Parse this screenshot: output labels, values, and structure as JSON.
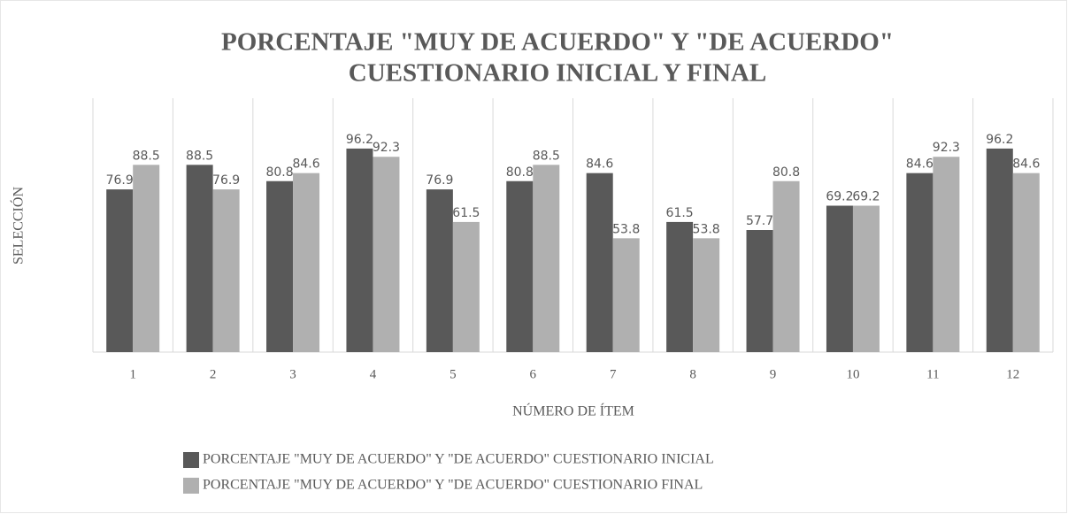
{
  "chart_data": {
    "type": "bar",
    "title": [
      "PORCENTAJE \"MUY DE ACUERDO\" Y \"DE ACUERDO\"",
      "CUESTIONARIO INICIAL Y FINAL"
    ],
    "x_label": "NÚMERO DE ÍTEM",
    "y_label": "SELECCIÓN",
    "categories": [
      "1",
      "2",
      "3",
      "4",
      "5",
      "6",
      "7",
      "8",
      "9",
      "10",
      "11",
      "12"
    ],
    "series": [
      {
        "name": "PORCENTAJE \"MUY DE ACUERDO\" Y \"DE ACUERDO\" CUESTIONARIO INICIAL",
        "color": "#595959",
        "values": [
          76.9,
          88.5,
          80.8,
          96.2,
          76.9,
          80.8,
          84.6,
          61.5,
          57.7,
          69.2,
          84.6,
          96.2
        ]
      },
      {
        "name": "PORCENTAJE \"MUY DE ACUERDO\" Y \"DE ACUERDO\" CUESTIONARIO FINAL",
        "color": "#b0b0b0",
        "values": [
          88.5,
          76.9,
          84.6,
          92.3,
          61.5,
          88.5,
          53.8,
          53.8,
          80.8,
          69.2,
          92.3,
          84.6
        ]
      }
    ],
    "ylim": [
      0,
      120
    ],
    "legend": "bottom"
  }
}
